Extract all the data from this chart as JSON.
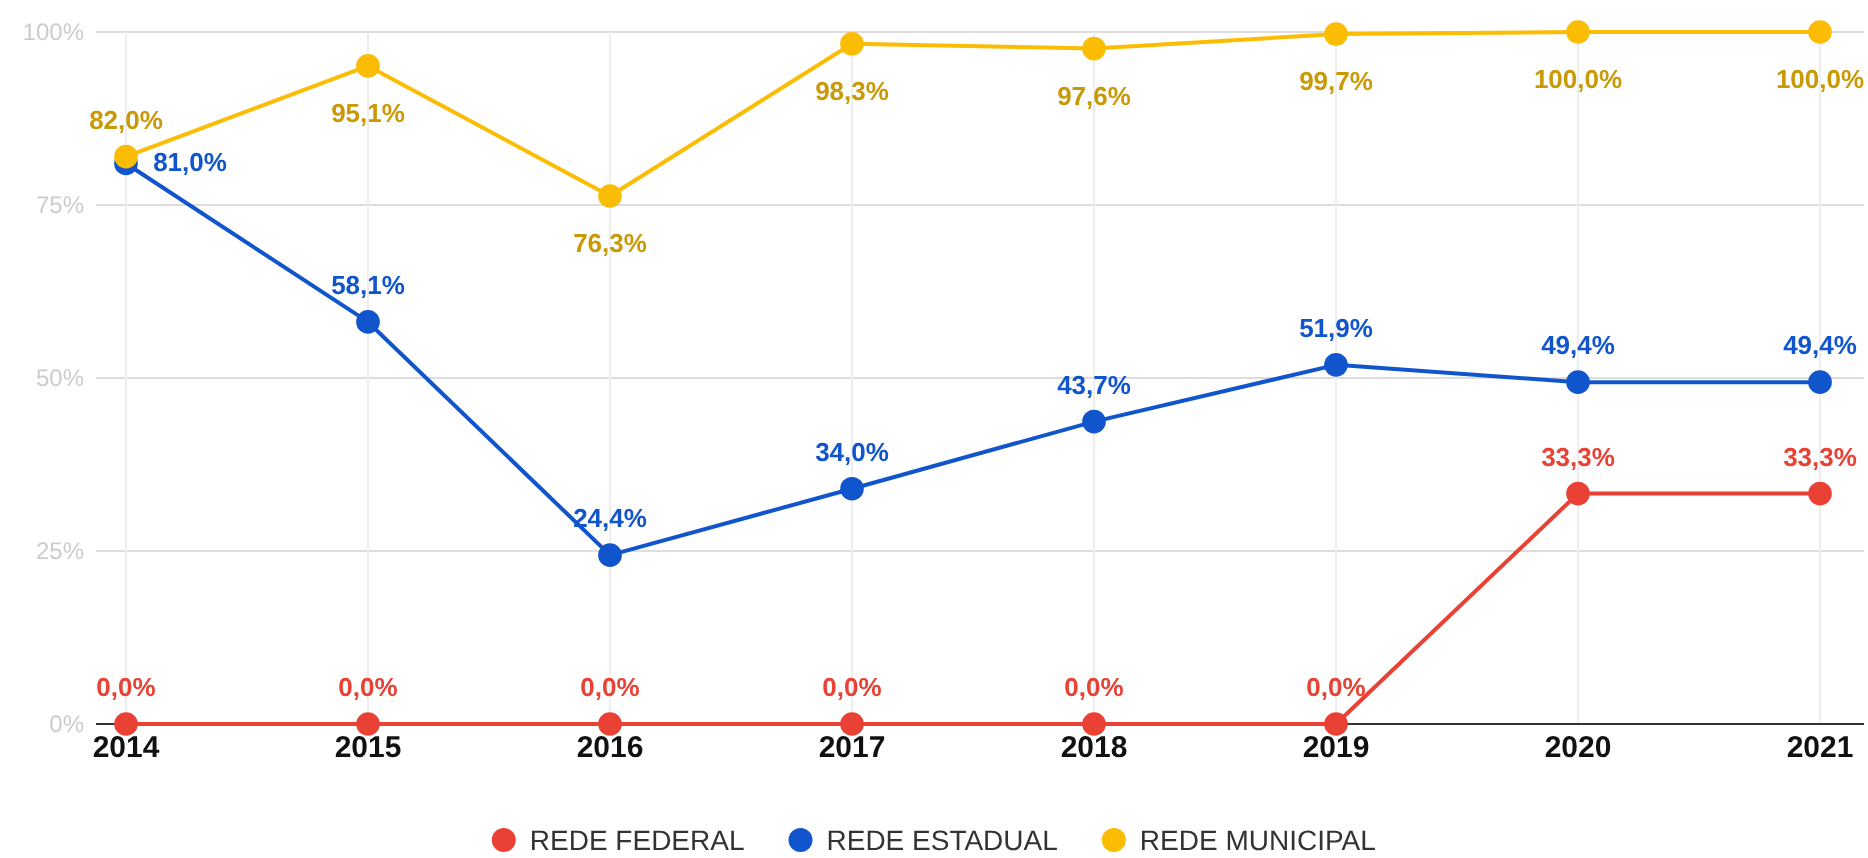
{
  "chart_data": {
    "type": "line",
    "categories": [
      "2014",
      "2015",
      "2016",
      "2017",
      "2018",
      "2019",
      "2020",
      "2021"
    ],
    "series": [
      {
        "name": "REDE FEDERAL",
        "color": "#e94235",
        "values": [
          0,
          0,
          0,
          0,
          0,
          0,
          33.3,
          33.3
        ],
        "value_labels": [
          "0,0%",
          "0,0%",
          "0,0%",
          "0,0%",
          "0,0%",
          "0,0%",
          "33,3%",
          "33,3%"
        ]
      },
      {
        "name": "REDE ESTADUAL",
        "color": "#1155cc",
        "values": [
          81.0,
          58.1,
          24.4,
          34.0,
          43.7,
          51.9,
          49.4,
          49.4
        ],
        "value_labels": [
          "81,0%",
          "58,1%",
          "24,4%",
          "34,0%",
          "43,7%",
          "51,9%",
          "49,4%",
          "49,4%"
        ]
      },
      {
        "name": "REDE MUNICIPAL",
        "color": "#fbbc04",
        "values": [
          82.0,
          95.1,
          76.3,
          98.3,
          97.6,
          99.7,
          100.0,
          100.0
        ],
        "value_labels": [
          "82,0%",
          "95,1%",
          "76,3%",
          "98,3%",
          "97,6%",
          "99,7%",
          "100,0%",
          "100,0%"
        ]
      }
    ],
    "ylim": [
      0,
      100
    ],
    "yticks": [
      {
        "value": 0,
        "label": "0%"
      },
      {
        "value": 25,
        "label": "25%"
      },
      {
        "value": 50,
        "label": "50%"
      },
      {
        "value": 75,
        "label": "75%"
      },
      {
        "value": 100,
        "label": "100%"
      }
    ],
    "grid": true,
    "legend": "bottom",
    "marker": "circle",
    "line_style": "solid"
  }
}
